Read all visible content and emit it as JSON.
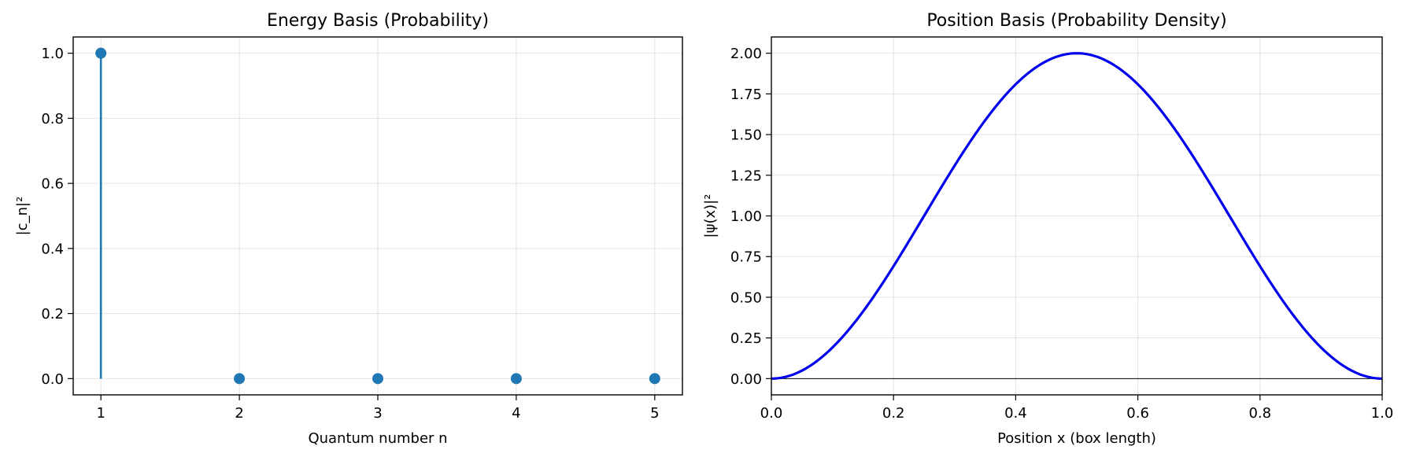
{
  "chart_data": [
    {
      "type": "stem",
      "title": "Energy Basis (Probability)",
      "xlabel": "Quantum number n",
      "ylabel": "|c_n|²",
      "x": [
        1,
        2,
        3,
        4,
        5
      ],
      "values": [
        1.0,
        0.0,
        0.0,
        0.0,
        0.0
      ],
      "xlim": [
        0.8,
        5.2
      ],
      "ylim": [
        -0.05,
        1.05
      ],
      "xticks": [
        1,
        2,
        3,
        4,
        5
      ],
      "yticks": [
        0.0,
        0.2,
        0.4,
        0.6,
        0.8,
        1.0
      ],
      "ytick_labels": [
        "0.0",
        "0.2",
        "0.4",
        "0.6",
        "0.8",
        "1.0"
      ],
      "color": "#1f77b4",
      "grid": true
    },
    {
      "type": "line",
      "title": "Position Basis (Probability Density)",
      "xlabel": "Position x (box length)",
      "ylabel": "|ψ(x)|²",
      "function": "2*sin^2(pi*x)",
      "samples": 200,
      "xlim": [
        0.0,
        1.0
      ],
      "ylim": [
        -0.1,
        2.1
      ],
      "xticks": [
        0.0,
        0.2,
        0.4,
        0.6,
        0.8,
        1.0
      ],
      "xtick_labels": [
        "0.0",
        "0.2",
        "0.4",
        "0.6",
        "0.8",
        "1.0"
      ],
      "yticks": [
        0.0,
        0.25,
        0.5,
        0.75,
        1.0,
        1.25,
        1.5,
        1.75,
        2.0
      ],
      "ytick_labels": [
        "0.00",
        "0.25",
        "0.50",
        "0.75",
        "1.00",
        "1.25",
        "1.50",
        "1.75",
        "2.00"
      ],
      "color": "#0000ee",
      "baseline": 0,
      "grid": true
    }
  ]
}
